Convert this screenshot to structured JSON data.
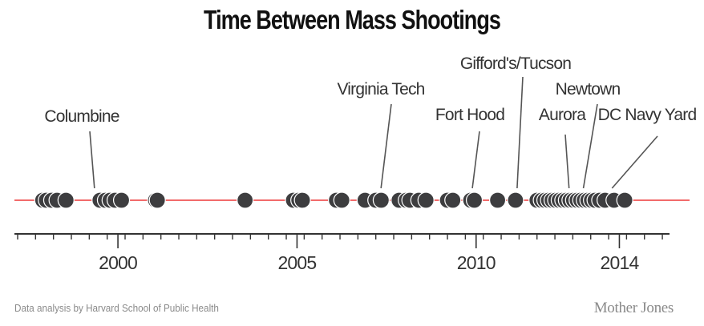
{
  "chart_data": {
    "type": "scatter",
    "title": "Time Between Mass Shootings",
    "x_range": [
      1997.2,
      2015.4
    ],
    "ticks": {
      "major": [
        2000,
        2005,
        2010,
        2014
      ],
      "major_labels": [
        "2000",
        "2005",
        "2010",
        "2014"
      ],
      "minor_start": 1997.2,
      "minor_step": 0.5
    },
    "events": [
      1997.9,
      1998.0,
      1998.15,
      1998.3,
      1998.55,
      1999.5,
      1999.65,
      1999.78,
      1999.92,
      2000.1,
      2001.05,
      2001.1,
      2003.55,
      2004.9,
      2005.05,
      2005.15,
      2006.1,
      2006.25,
      2006.9,
      2007.2,
      2007.35,
      2007.85,
      2008.05,
      2008.15,
      2008.4,
      2008.6,
      2009.2,
      2009.35,
      2009.85,
      2009.95,
      2010.6,
      2011.1,
      2011.7,
      2011.82,
      2011.92,
      2012.02,
      2012.12,
      2012.22,
      2012.32,
      2012.42,
      2012.52,
      2012.62,
      2012.72,
      2012.82,
      2012.92,
      2013.02,
      2013.12,
      2013.22,
      2013.32,
      2013.45,
      2013.6,
      2013.85,
      2014.15
    ],
    "annotations": [
      {
        "label": "Columbine",
        "x": 1999.3
      },
      {
        "label": "Virginia Tech",
        "x": 2007.3
      },
      {
        "label": "Fort Hood",
        "x": 2009.85
      },
      {
        "label": "Gifford's/Tucson",
        "x": 2011.1
      },
      {
        "label": "Aurora",
        "x": 2012.55
      },
      {
        "label": "Newtown",
        "x": 2012.95
      },
      {
        "label": "DC Navy Yard",
        "x": 2013.75
      }
    ],
    "colors": {
      "dot": "#3d3d3f",
      "dot_stroke": "#ffffff",
      "timeline": "#f26b6b",
      "axis": "#333333",
      "leader": "#555555"
    }
  },
  "footer": {
    "source": "Data analysis by Harvard School of Public Health",
    "credit": "Mother Jones"
  }
}
